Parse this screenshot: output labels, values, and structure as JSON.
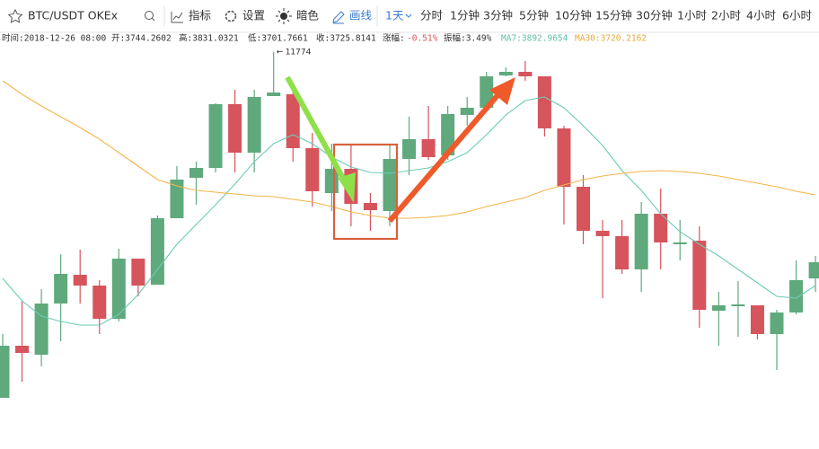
{
  "toolbar": {
    "symbol": "BTC/USDT OKEx",
    "tools": [
      "指标",
      "设置",
      "暗色",
      "画线"
    ],
    "period": "1天",
    "intervals": [
      "分时",
      "1分钟",
      "3分钟",
      "5分钟",
      "10分钟",
      "15分钟",
      "30分钟",
      "1小时",
      "2小时",
      "4小时",
      "6小时"
    ]
  },
  "info": {
    "time": "时间:2018-12-26 08:00",
    "open": "开:3744.2602",
    "high": "高:3831.0321",
    "low": "低:3701.7661",
    "close": "收:3725.8141",
    "change_label": "涨幅:",
    "change": "-0.51%",
    "amplitude": "振幅:3.49%",
    "ma7": "MA7:3892.9654",
    "ma30": "MA30:3720.2162"
  },
  "chart_data": {
    "type": "candlestick",
    "ylim": [
      2930,
      11930
    ],
    "up_color": "#5fa97c",
    "down_color": "#d6545c",
    "open": [
      4070,
      5230,
      5030,
      6170,
      6810,
      6570,
      5830,
      7170,
      6590,
      8070,
      8970,
      9190,
      10610,
      9530,
      10790,
      10830,
      9630,
      8630,
      9170,
      8410,
      8230,
      9390,
      9830,
      9470,
      10370,
      10530,
      11250,
      11330,
      11230,
      10070,
      8770,
      7790,
      7670,
      6930,
      8170,
      7490,
      7570,
      6010,
      6110,
      6130,
      5490,
      5970,
      6730
    ],
    "high": [
      5490,
      6230,
      6490,
      7270,
      7370,
      6690,
      7390,
      7170,
      8130,
      9230,
      9330,
      10630,
      10930,
      10930,
      11774,
      10930,
      9970,
      9730,
      9730,
      8630,
      9730,
      10330,
      10570,
      10570,
      10770,
      11330,
      11430,
      11570,
      11230,
      10130,
      9030,
      8030,
      8030,
      8430,
      8730,
      8030,
      7890,
      6430,
      6670,
      6130,
      6030,
      7130,
      7230
    ],
    "low": [
      4070,
      4430,
      4770,
      5330,
      6170,
      5490,
      5770,
      6330,
      6590,
      8070,
      8370,
      9090,
      9090,
      9090,
      10790,
      9330,
      8330,
      8230,
      7890,
      7790,
      7890,
      9030,
      9370,
      9370,
      10130,
      10530,
      11230,
      11130,
      9890,
      7930,
      7490,
      6290,
      6830,
      6430,
      6930,
      7130,
      5630,
      5230,
      5430,
      5370,
      4690,
      5930,
      6430
    ],
    "close": [
      5230,
      5070,
      6170,
      6830,
      6570,
      5830,
      7170,
      6570,
      8070,
      8930,
      9190,
      10610,
      9530,
      10770,
      10870,
      9630,
      8670,
      9170,
      8390,
      8250,
      9390,
      9830,
      9430,
      10390,
      10530,
      11230,
      11330,
      11230,
      10070,
      8770,
      7790,
      7670,
      6930,
      8170,
      7530,
      7530,
      6030,
      6130,
      6150,
      5490,
      5970,
      6690,
      7090
    ],
    "series": [
      {
        "name": "MA7",
        "color": "#6ccbb6",
        "values": [
          6730,
          6230,
          5890,
          5770,
          5690,
          5690,
          5930,
          6370,
          6930,
          7490,
          7930,
          8370,
          8830,
          9330,
          9730,
          9930,
          9730,
          9430,
          9210,
          9090,
          9070,
          9130,
          9190,
          9330,
          9530,
          9930,
          10370,
          10690,
          10770,
          10530,
          10130,
          9690,
          9130,
          8690,
          8170,
          7770,
          7490,
          7230,
          6930,
          6630,
          6330,
          6290,
          6570
        ]
      },
      {
        "name": "MA30",
        "color": "#f3b54a",
        "values": [
          11130,
          10830,
          10570,
          10330,
          10090,
          9830,
          9530,
          9230,
          8930,
          8790,
          8690,
          8650,
          8610,
          8570,
          8550,
          8490,
          8430,
          8330,
          8210,
          8130,
          8070,
          8070,
          8090,
          8130,
          8210,
          8330,
          8430,
          8530,
          8690,
          8810,
          8930,
          9010,
          9070,
          9110,
          9130,
          9110,
          9070,
          9010,
          8930,
          8850,
          8770,
          8670,
          8590
        ]
      }
    ]
  }
}
